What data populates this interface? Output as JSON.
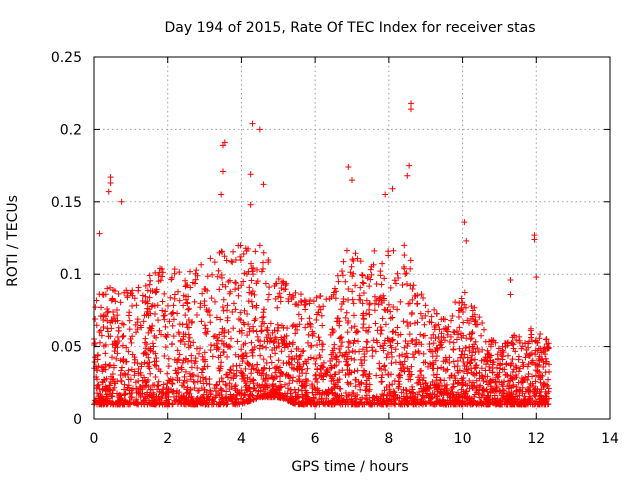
{
  "chart_data": {
    "type": "scatter",
    "title": "Day 194 of 2015, Rate Of TEC Index for receiver stas",
    "xlabel": "GPS time / hours",
    "ylabel": "ROTI / TECUs",
    "xlim": [
      0,
      14
    ],
    "ylim": [
      0,
      0.25
    ],
    "x_ticks": [
      0,
      2,
      4,
      6,
      8,
      10,
      12,
      14
    ],
    "x_tick_labels": [
      "0",
      "2",
      "4",
      "6",
      "8",
      "10",
      "12",
      "14"
    ],
    "y_ticks": [
      0,
      0.05,
      0.1,
      0.15,
      0.2,
      0.25
    ],
    "y_tick_labels": [
      "0",
      "0.05",
      "0.1",
      "0.15",
      "0.2",
      "0.25"
    ],
    "grid": true,
    "marker": "+",
    "series_color": "#ff0000",
    "data_extent_hours": [
      0,
      12.35
    ],
    "notable_points": [
      {
        "x": 4.3,
        "y": 0.204
      },
      {
        "x": 4.5,
        "y": 0.2
      },
      {
        "x": 3.55,
        "y": 0.191
      },
      {
        "x": 3.5,
        "y": 0.189
      },
      {
        "x": 8.6,
        "y": 0.218
      },
      {
        "x": 8.6,
        "y": 0.214
      },
      {
        "x": 6.9,
        "y": 0.174
      },
      {
        "x": 8.55,
        "y": 0.175
      },
      {
        "x": 8.5,
        "y": 0.168
      },
      {
        "x": 3.5,
        "y": 0.171
      },
      {
        "x": 4.25,
        "y": 0.169
      },
      {
        "x": 4.6,
        "y": 0.162
      },
      {
        "x": 0.45,
        "y": 0.167
      },
      {
        "x": 0.45,
        "y": 0.163
      },
      {
        "x": 0.4,
        "y": 0.157
      },
      {
        "x": 0.75,
        "y": 0.15
      },
      {
        "x": 3.45,
        "y": 0.155
      },
      {
        "x": 4.25,
        "y": 0.148
      },
      {
        "x": 7.0,
        "y": 0.165
      },
      {
        "x": 8.1,
        "y": 0.159
      },
      {
        "x": 7.9,
        "y": 0.155
      },
      {
        "x": 11.95,
        "y": 0.127
      },
      {
        "x": 11.95,
        "y": 0.124
      },
      {
        "x": 0.15,
        "y": 0.128
      },
      {
        "x": 10.05,
        "y": 0.136
      },
      {
        "x": 10.1,
        "y": 0.123
      },
      {
        "x": 11.3,
        "y": 0.096
      },
      {
        "x": 11.3,
        "y": 0.086
      },
      {
        "x": 12.0,
        "y": 0.098
      }
    ],
    "density_profile": [
      {
        "x": 0.0,
        "low": 0.01,
        "high": 0.085
      },
      {
        "x": 0.5,
        "low": 0.01,
        "high": 0.095
      },
      {
        "x": 1.0,
        "low": 0.01,
        "high": 0.09
      },
      {
        "x": 1.5,
        "low": 0.01,
        "high": 0.1
      },
      {
        "x": 2.0,
        "low": 0.01,
        "high": 0.11
      },
      {
        "x": 2.5,
        "low": 0.01,
        "high": 0.1
      },
      {
        "x": 3.0,
        "low": 0.01,
        "high": 0.11
      },
      {
        "x": 3.5,
        "low": 0.01,
        "high": 0.12
      },
      {
        "x": 4.0,
        "low": 0.01,
        "high": 0.12
      },
      {
        "x": 4.5,
        "low": 0.015,
        "high": 0.12
      },
      {
        "x": 5.0,
        "low": 0.015,
        "high": 0.1
      },
      {
        "x": 5.5,
        "low": 0.01,
        "high": 0.09
      },
      {
        "x": 6.0,
        "low": 0.01,
        "high": 0.085
      },
      {
        "x": 6.5,
        "low": 0.01,
        "high": 0.09
      },
      {
        "x": 7.0,
        "low": 0.01,
        "high": 0.13
      },
      {
        "x": 7.5,
        "low": 0.01,
        "high": 0.12
      },
      {
        "x": 8.0,
        "low": 0.01,
        "high": 0.12
      },
      {
        "x": 8.5,
        "low": 0.01,
        "high": 0.12
      },
      {
        "x": 9.0,
        "low": 0.01,
        "high": 0.08
      },
      {
        "x": 9.5,
        "low": 0.01,
        "high": 0.07
      },
      {
        "x": 10.0,
        "low": 0.01,
        "high": 0.09
      },
      {
        "x": 10.5,
        "low": 0.01,
        "high": 0.07
      },
      {
        "x": 11.0,
        "low": 0.01,
        "high": 0.05
      },
      {
        "x": 11.5,
        "low": 0.01,
        "high": 0.06
      },
      {
        "x": 12.0,
        "low": 0.01,
        "high": 0.065
      },
      {
        "x": 12.3,
        "low": 0.01,
        "high": 0.055
      }
    ]
  }
}
